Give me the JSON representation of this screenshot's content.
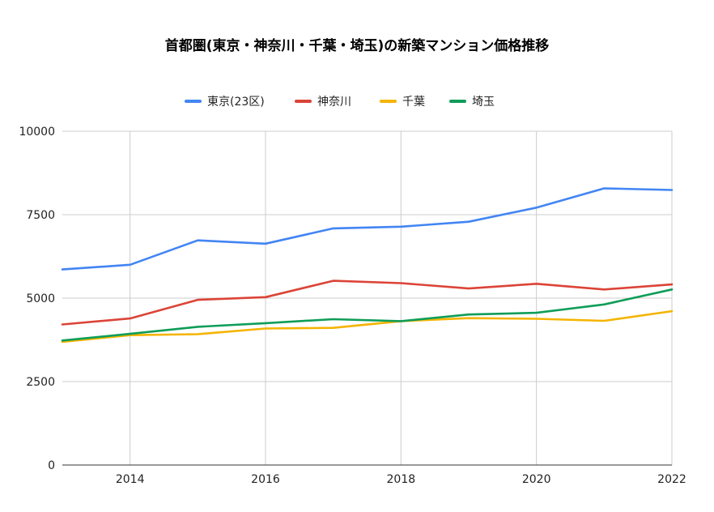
{
  "chart_data": {
    "type": "line",
    "title": "首都圏(東京・神奈川・千葉・埼玉)の新築マンション価格推移",
    "xlabel": "",
    "ylabel": "",
    "x": [
      2013,
      2014,
      2015,
      2016,
      2017,
      2018,
      2019,
      2020,
      2021,
      2022
    ],
    "xlim": [
      2013,
      2022
    ],
    "ylim": [
      0,
      10000
    ],
    "x_ticks": [
      2014,
      2016,
      2018,
      2020,
      2022
    ],
    "y_ticks": [
      0,
      2500,
      5000,
      7500,
      10000
    ],
    "grid": true,
    "legend": "top",
    "series": [
      {
        "name": "東京(23区)",
        "color": "#4285F4",
        "values": [
          5860,
          6000,
          6730,
          6630,
          7090,
          7140,
          7290,
          7710,
          8290,
          8240
        ]
      },
      {
        "name": "神奈川",
        "color": "#DB4437",
        "values": [
          4210,
          4390,
          4950,
          5030,
          5520,
          5450,
          5290,
          5430,
          5260,
          5410
        ]
      },
      {
        "name": "千葉",
        "color": "#F4B400",
        "values": [
          3690,
          3890,
          3920,
          4090,
          4110,
          4310,
          4400,
          4380,
          4320,
          4610
        ]
      },
      {
        "name": "埼玉",
        "color": "#0F9D58",
        "values": [
          3730,
          3930,
          4140,
          4250,
          4370,
          4310,
          4510,
          4560,
          4810,
          5260
        ]
      }
    ]
  }
}
